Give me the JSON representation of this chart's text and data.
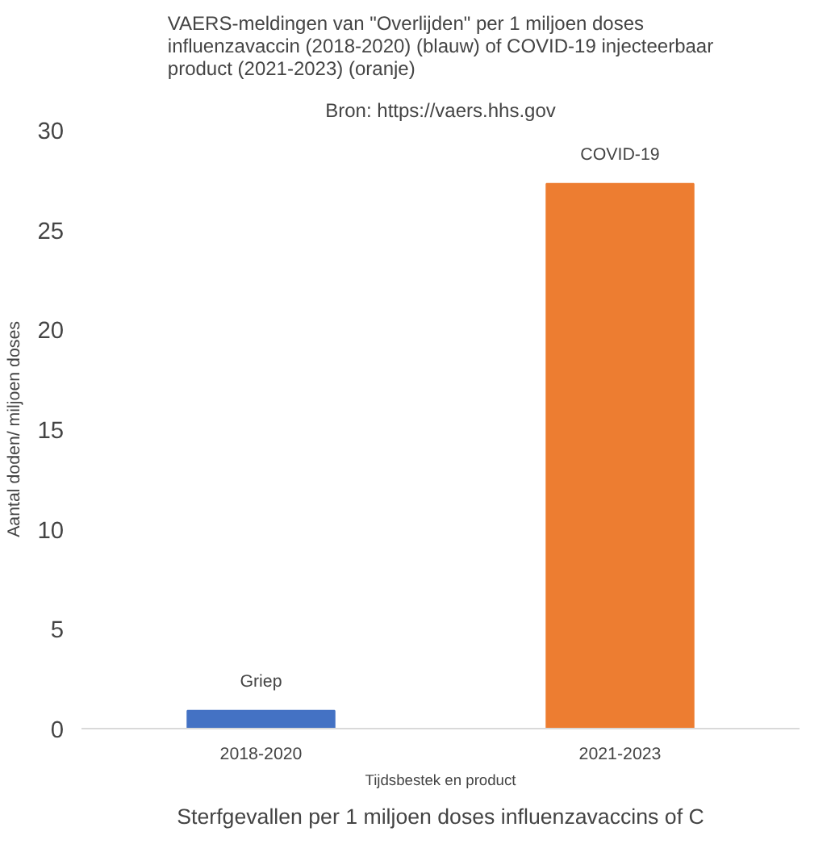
{
  "chart_data": {
    "type": "bar",
    "title": "VAERS-meldingen van \"Overlijden\" per 1 miljoen doses influenzavaccin (2018-2020) (blauw) of COVID-19 injecteerbaar product (2021-2023) (oranje)",
    "subtitle": "Bron: https://vaers.hhs.gov",
    "xlabel": "Tijdsbestek en product",
    "ylabel": "Aantal doden/ miljoen doses",
    "annotations": [
      "Sterfgevallen per 1 miljoen doses influenzavaccins of C"
    ],
    "categories": [
      "2018-2020",
      "2021-2023"
    ],
    "values": [
      0.9,
      27.3
    ],
    "colors": [
      "#4472c4",
      "#ed7d31"
    ],
    "value_labels": [
      "Griep",
      "COVID-19"
    ],
    "ylim": [
      0,
      30
    ],
    "yticks": [
      0,
      5,
      10,
      15,
      20,
      25,
      30
    ],
    "grid": false
  }
}
